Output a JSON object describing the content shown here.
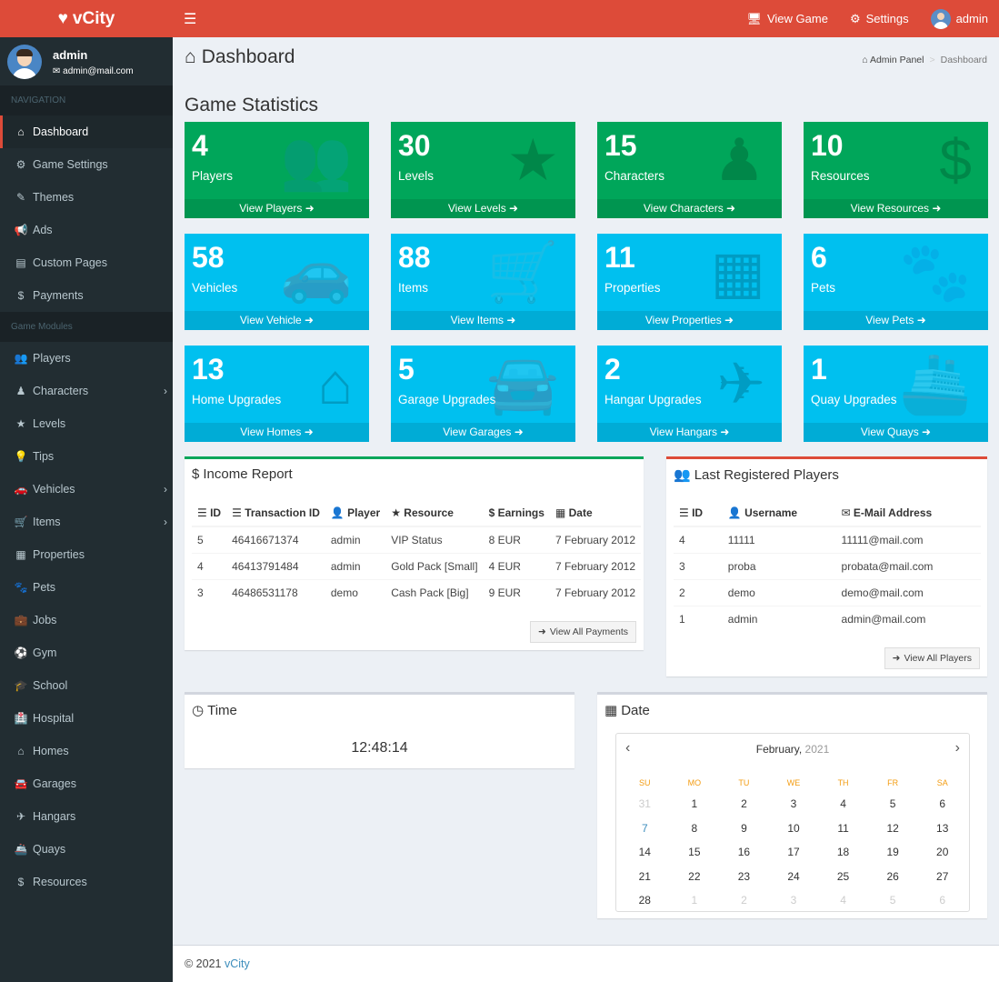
{
  "brand": {
    "name": "vCity",
    "heart_icon": "heart-icon"
  },
  "topbar": {
    "view_game": "View Game",
    "settings": "Settings",
    "user": "admin"
  },
  "user_panel": {
    "name": "admin",
    "email": "admin@mail.com"
  },
  "sidebar": {
    "nav_header": "NAVIGATION",
    "modules_header": "Game Modules",
    "nav_items": [
      {
        "label": "Dashboard",
        "icon": "⌂",
        "active": true
      },
      {
        "label": "Game Settings",
        "icon": "⚙"
      },
      {
        "label": "Themes",
        "icon": "✎"
      },
      {
        "label": "Ads",
        "icon": "📢"
      },
      {
        "label": "Custom Pages",
        "icon": "▤"
      },
      {
        "label": "Payments",
        "icon": "$"
      }
    ],
    "module_items": [
      {
        "label": "Players",
        "icon": "👥"
      },
      {
        "label": "Characters",
        "icon": "♟",
        "chevron": true
      },
      {
        "label": "Levels",
        "icon": "★"
      },
      {
        "label": "Tips",
        "icon": "💡"
      },
      {
        "label": "Vehicles",
        "icon": "🚗",
        "chevron": true
      },
      {
        "label": "Items",
        "icon": "🛒",
        "chevron": true
      },
      {
        "label": "Properties",
        "icon": "▦"
      },
      {
        "label": "Pets",
        "icon": "🐾"
      },
      {
        "label": "Jobs",
        "icon": "💼"
      },
      {
        "label": "Gym",
        "icon": "⚽"
      },
      {
        "label": "School",
        "icon": "🎓"
      },
      {
        "label": "Hospital",
        "icon": "🏥"
      },
      {
        "label": "Homes",
        "icon": "⌂"
      },
      {
        "label": "Garages",
        "icon": "🚘"
      },
      {
        "label": "Hangars",
        "icon": "✈"
      },
      {
        "label": "Quays",
        "icon": "🚢"
      },
      {
        "label": "Resources",
        "icon": "$"
      }
    ]
  },
  "page": {
    "title": "Dashboard",
    "breadcrumb_root": "Admin Panel",
    "breadcrumb_current": "Dashboard",
    "section_title": "Game Statistics"
  },
  "tiles": [
    {
      "value": "4",
      "label": "Players",
      "link": "View Players",
      "color": "green",
      "icon": "👥"
    },
    {
      "value": "30",
      "label": "Levels",
      "link": "View Levels",
      "color": "green",
      "icon": "★"
    },
    {
      "value": "15",
      "label": "Characters",
      "link": "View Characters",
      "color": "green",
      "icon": "♟"
    },
    {
      "value": "10",
      "label": "Resources",
      "link": "View Resources",
      "color": "green",
      "icon": "$"
    },
    {
      "value": "58",
      "label": "Vehicles",
      "link": "View Vehicle",
      "color": "blue",
      "icon": "🚗"
    },
    {
      "value": "88",
      "label": "Items",
      "link": "View Items",
      "color": "blue",
      "icon": "🛒"
    },
    {
      "value": "11",
      "label": "Properties",
      "link": "View Properties",
      "color": "blue",
      "icon": "▦"
    },
    {
      "value": "6",
      "label": "Pets",
      "link": "View Pets",
      "color": "blue",
      "icon": "🐾"
    },
    {
      "value": "13",
      "label": "Home Upgrades",
      "link": "View Homes",
      "color": "blue",
      "icon": "⌂"
    },
    {
      "value": "5",
      "label": "Garage Upgrades",
      "link": "View Garages",
      "color": "blue",
      "icon": "🚘"
    },
    {
      "value": "2",
      "label": "Hangar Upgrades",
      "link": "View Hangars",
      "color": "blue",
      "icon": "✈"
    },
    {
      "value": "1",
      "label": "Quay Upgrades",
      "link": "View Quays",
      "color": "blue",
      "icon": "🚢"
    }
  ],
  "income": {
    "title": "Income Report",
    "headers": [
      "ID",
      "Transaction ID",
      "Player",
      "Resource",
      "Earnings",
      "Date"
    ],
    "rows": [
      [
        "5",
        "46416671374",
        "admin",
        "VIP Status",
        "8 EUR",
        "7 February 2012"
      ],
      [
        "4",
        "46413791484",
        "admin",
        "Gold Pack [Small]",
        "4 EUR",
        "7 February 2012"
      ],
      [
        "3",
        "46486531178",
        "demo",
        "Cash Pack [Big]",
        "9 EUR",
        "7 February 2012"
      ]
    ],
    "button": "View All Payments"
  },
  "players": {
    "title": "Last Registered Players",
    "headers": [
      "ID",
      "Username",
      "E-Mail Address"
    ],
    "rows": [
      [
        "4",
        "11111",
        "11111@mail.com"
      ],
      [
        "3",
        "proba",
        "probata@mail.com"
      ],
      [
        "2",
        "demo",
        "demo@mail.com"
      ],
      [
        "1",
        "admin",
        "admin@mail.com"
      ]
    ],
    "button": "View All Players"
  },
  "time": {
    "title": "Time",
    "value": "12:48:14"
  },
  "date": {
    "title": "Date",
    "month": "February,",
    "year": "2021",
    "weekdays": [
      "SU",
      "MO",
      "TU",
      "WE",
      "TH",
      "FR",
      "SA"
    ],
    "days": [
      {
        "d": "31",
        "m": true
      },
      {
        "d": "1"
      },
      {
        "d": "2"
      },
      {
        "d": "3"
      },
      {
        "d": "4"
      },
      {
        "d": "5"
      },
      {
        "d": "6"
      },
      {
        "d": "7",
        "today": true
      },
      {
        "d": "8"
      },
      {
        "d": "9"
      },
      {
        "d": "10"
      },
      {
        "d": "11"
      },
      {
        "d": "12"
      },
      {
        "d": "13"
      },
      {
        "d": "14"
      },
      {
        "d": "15"
      },
      {
        "d": "16"
      },
      {
        "d": "17"
      },
      {
        "d": "18"
      },
      {
        "d": "19"
      },
      {
        "d": "20"
      },
      {
        "d": "21"
      },
      {
        "d": "22"
      },
      {
        "d": "23"
      },
      {
        "d": "24"
      },
      {
        "d": "25"
      },
      {
        "d": "26"
      },
      {
        "d": "27"
      },
      {
        "d": "28"
      },
      {
        "d": "1",
        "m": true
      },
      {
        "d": "2",
        "m": true
      },
      {
        "d": "3",
        "m": true
      },
      {
        "d": "4",
        "m": true
      },
      {
        "d": "5",
        "m": true
      },
      {
        "d": "6",
        "m": true
      }
    ]
  },
  "footer": {
    "copyright": "© 2021",
    "link": "vCity"
  },
  "colors": {
    "header": "#dd4b39",
    "sidebar": "#222d32",
    "green": "#00a65a",
    "blue": "#00c0ef",
    "link": "#3c8dbc"
  }
}
